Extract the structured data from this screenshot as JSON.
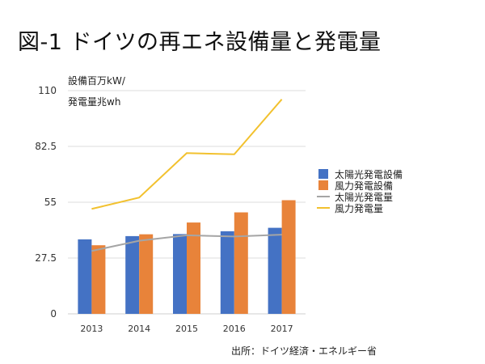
{
  "title": "図-1 ドイツの再エネ設備量と発電量",
  "source": "出所：ドイツ経済・エネルギー省",
  "chart_data": {
    "type": "bar",
    "ylabel_line1": "設備百万kW/",
    "ylabel_line2": "発電量兆wh",
    "categories": [
      "2013",
      "2014",
      "2015",
      "2016",
      "2017"
    ],
    "ylim": [
      0,
      110
    ],
    "yticks": [
      "0",
      "27.5",
      "55",
      "82.5",
      "110"
    ],
    "grid": true,
    "legend_position": "right",
    "series": [
      {
        "name": "太陽光発電設備",
        "kind": "bar",
        "color": "#4472c4",
        "values": [
          36.7,
          38.3,
          39.3,
          40.7,
          42.4
        ]
      },
      {
        "name": "風力発電設備",
        "kind": "bar",
        "color": "#e8833a",
        "values": [
          33.8,
          39.2,
          45.0,
          50.0,
          56.0
        ]
      },
      {
        "name": "太陽光発電量",
        "kind": "line",
        "color": "#a5a5a5",
        "values": [
          31.0,
          36.0,
          38.7,
          38.1,
          39.0
        ]
      },
      {
        "name": "風力発電量",
        "kind": "line",
        "color": "#f2c12e",
        "values": [
          51.7,
          57.3,
          79.2,
          78.6,
          105.7
        ]
      }
    ]
  }
}
